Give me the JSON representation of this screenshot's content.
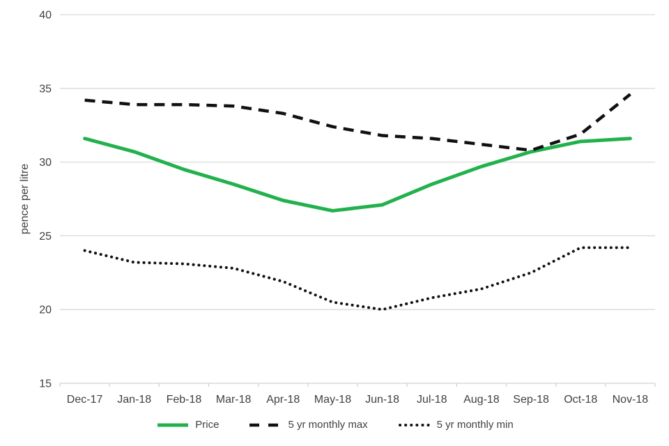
{
  "chart_data": {
    "type": "line",
    "title": "",
    "xlabel": "",
    "ylabel": "pence per litre",
    "ylim": [
      15,
      40
    ],
    "yticks": [
      15,
      20,
      25,
      30,
      35,
      40
    ],
    "grid": "horizontal",
    "legend_position": "bottom",
    "categories": [
      "Dec-17",
      "Jan-18",
      "Feb-18",
      "Mar-18",
      "Apr-18",
      "May-18",
      "Jun-18",
      "Jul-18",
      "Aug-18",
      "Sep-18",
      "Oct-18",
      "Nov-18"
    ],
    "series": [
      {
        "name": "Price",
        "style": "solid",
        "color": "#22b14c",
        "values": [
          31.6,
          30.7,
          29.5,
          28.5,
          27.4,
          26.7,
          27.1,
          28.5,
          29.7,
          30.7,
          31.4,
          31.6
        ]
      },
      {
        "name": "5 yr monthly max",
        "style": "dashed",
        "color": "#111111",
        "values": [
          34.2,
          33.9,
          33.9,
          33.8,
          33.3,
          32.4,
          31.8,
          31.6,
          31.2,
          30.8,
          31.9,
          34.6
        ]
      },
      {
        "name": "5 yr monthly min",
        "style": "dotted",
        "color": "#111111",
        "values": [
          24.0,
          23.2,
          23.1,
          22.8,
          21.9,
          20.5,
          20.0,
          20.8,
          21.4,
          22.5,
          24.2,
          24.2
        ]
      }
    ]
  },
  "colors": {
    "text": "#404040",
    "grid": "#d9d9d9",
    "axis": "#d2d2d2"
  }
}
